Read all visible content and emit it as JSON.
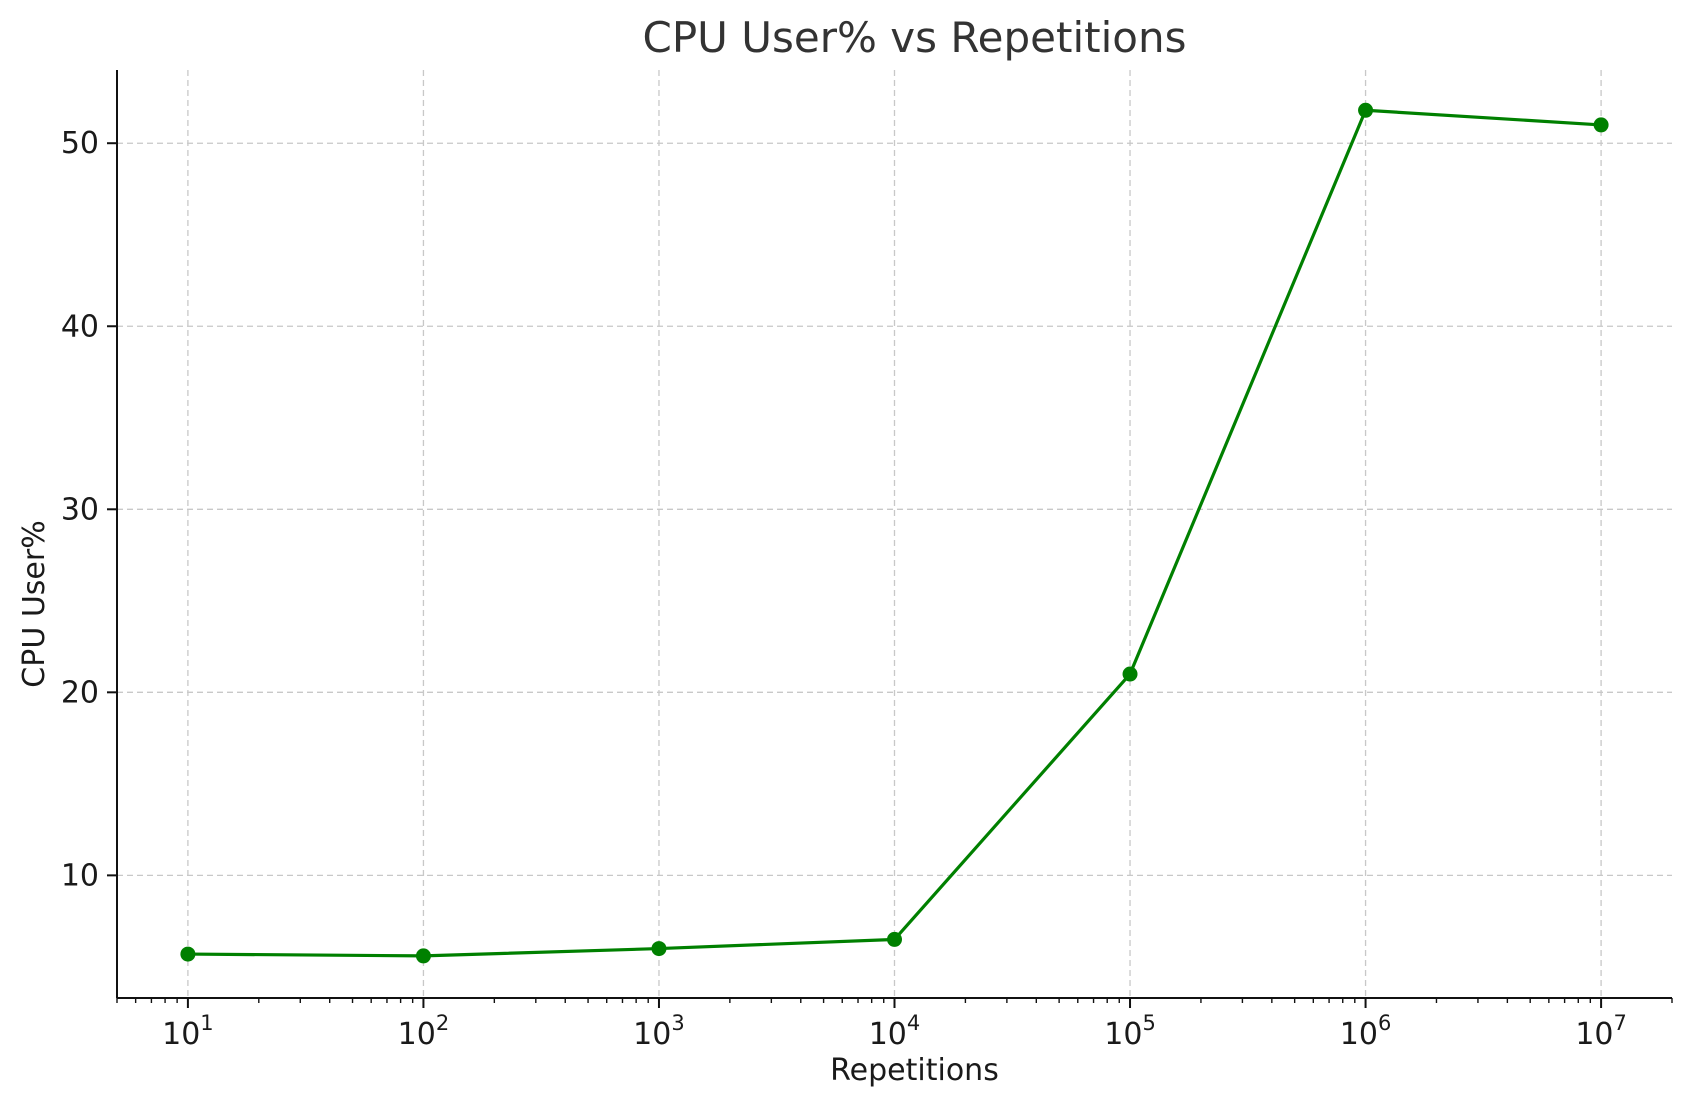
{
  "chart_data": {
    "type": "line",
    "title": "CPU User% vs Repetitions",
    "xlabel": "Repetitions",
    "ylabel": "CPU User%",
    "x_scale": "log",
    "xlim": [
      5,
      20000000
    ],
    "ylim": [
      3.3,
      54
    ],
    "grid": true,
    "x_ticks": [
      {
        "base": "10",
        "exp": "1",
        "value": 10
      },
      {
        "base": "10",
        "exp": "2",
        "value": 100
      },
      {
        "base": "10",
        "exp": "3",
        "value": 1000
      },
      {
        "base": "10",
        "exp": "4",
        "value": 10000
      },
      {
        "base": "10",
        "exp": "5",
        "value": 100000
      },
      {
        "base": "10",
        "exp": "6",
        "value": 1000000
      },
      {
        "base": "10",
        "exp": "7",
        "value": 10000000
      }
    ],
    "y_ticks": [
      {
        "label": "10",
        "value": 10
      },
      {
        "label": "20",
        "value": 20
      },
      {
        "label": "30",
        "value": 30
      },
      {
        "label": "40",
        "value": 40
      },
      {
        "label": "50",
        "value": 50
      }
    ],
    "x": [
      10,
      100,
      1000,
      10000,
      100000,
      1000000,
      10000000
    ],
    "series": [
      {
        "color": "#008000",
        "marker": "circle",
        "values": [
          5.7,
          5.6,
          6.0,
          6.5,
          21.0,
          51.8,
          51.0
        ]
      }
    ]
  }
}
